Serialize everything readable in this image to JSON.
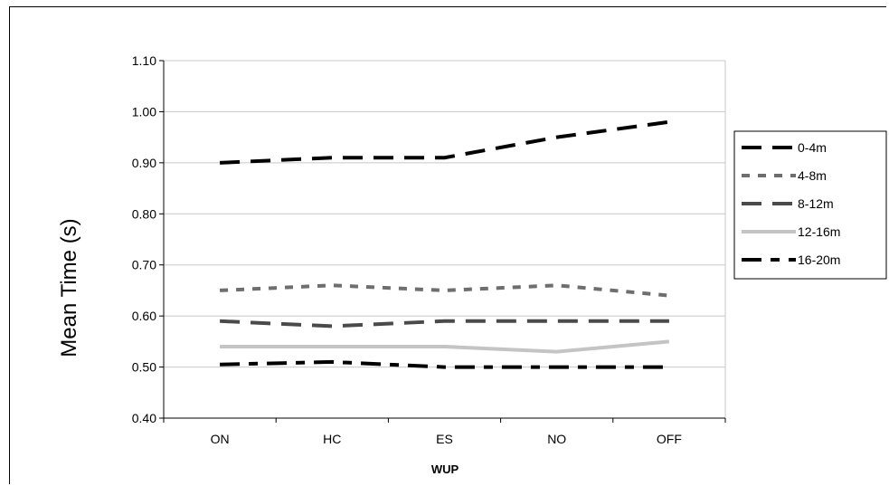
{
  "chart_data": {
    "type": "line",
    "title": "",
    "xlabel": "WUP",
    "ylabel": "Mean Time (s)",
    "categories": [
      "ON",
      "HC",
      "ES",
      "NO",
      "OFF"
    ],
    "ylim": [
      0.4,
      1.1
    ],
    "yticks": [
      "1.10",
      "1.00",
      "0.90",
      "0.80",
      "0.70",
      "0.60",
      "0.50",
      "0.40"
    ],
    "grid": true,
    "legend": "right",
    "series": [
      {
        "name": "0-4m",
        "values": [
          0.9,
          0.91,
          0.91,
          0.95,
          0.98
        ],
        "color": "#000000",
        "dash": "long"
      },
      {
        "name": "4-8m",
        "values": [
          0.65,
          0.66,
          0.65,
          0.66,
          0.64
        ],
        "color": "#6e6e6e",
        "dash": "short"
      },
      {
        "name": "8-12m",
        "values": [
          0.59,
          0.58,
          0.59,
          0.59,
          0.59
        ],
        "color": "#4a4a4a",
        "dash": "long"
      },
      {
        "name": "12-16m",
        "values": [
          0.54,
          0.54,
          0.54,
          0.53,
          0.55
        ],
        "color": "#c4c4c4",
        "dash": "solid"
      },
      {
        "name": "16-20m",
        "values": [
          0.505,
          0.51,
          0.5,
          0.5,
          0.5
        ],
        "color": "#000000",
        "dash": "longshort"
      }
    ]
  }
}
